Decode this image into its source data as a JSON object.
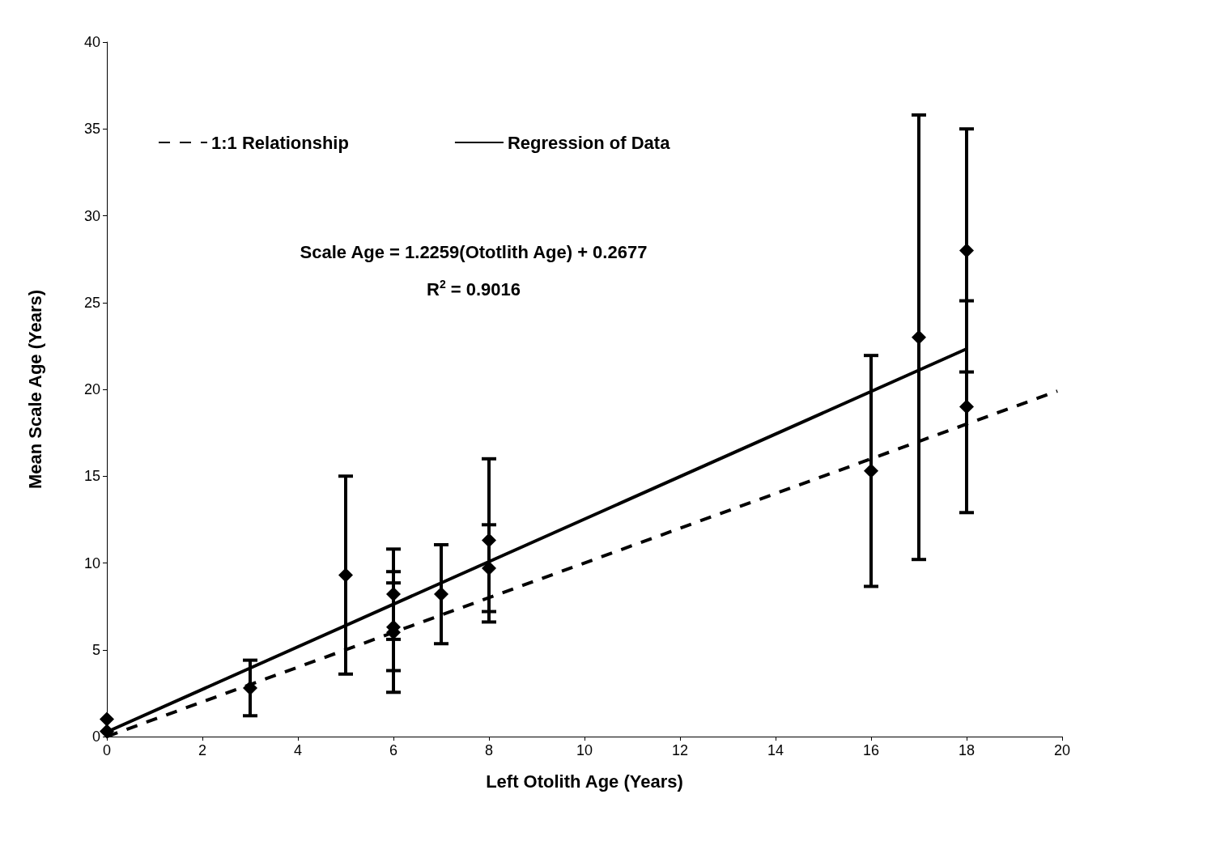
{
  "chart_data": {
    "type": "scatter",
    "xlabel": "Left Otolith Age (Years)",
    "ylabel": "Mean Scale Age (Years)",
    "xlim": [
      0,
      20
    ],
    "xticks": [
      0,
      2,
      4,
      6,
      8,
      10,
      12,
      14,
      16,
      18,
      20
    ],
    "ylim": [
      0,
      40
    ],
    "yticks": [
      0,
      5,
      10,
      15,
      20,
      25,
      30,
      35,
      40
    ],
    "grid": false,
    "legend": "top left",
    "marker": "diamond",
    "annotations": [
      "Scale Age = 1.2259(Ototlith Age) + 0.2677",
      "R$^{2}$ = 0.9016"
    ],
    "series": [
      {
        "color": "#000000",
        "x": [
          0,
          0,
          3,
          5,
          6,
          6,
          6,
          7,
          8,
          8,
          16,
          17,
          18,
          18
        ],
        "values": [
          1.0,
          0.3,
          2.8,
          9.3,
          8.2,
          6.3,
          6.0,
          8.2,
          11.3,
          9.7,
          15.3,
          23.0,
          28.0,
          19.0
        ],
        "errors": [
          null,
          null,
          [
            1.2,
            4.4
          ],
          [
            3.6,
            15.0
          ],
          [
            5.6,
            10.8
          ],
          [
            3.8,
            8.85
          ],
          [
            2.55,
            9.5
          ],
          [
            5.35,
            11.05
          ],
          [
            6.6,
            16.0
          ],
          [
            7.2,
            12.2
          ],
          [
            8.65,
            21.95
          ],
          [
            10.2,
            35.8
          ],
          [
            21.0,
            35.0
          ],
          [
            12.9,
            25.1
          ]
        ]
      },
      {
        "type": "line",
        "name": "1:1 Relationship",
        "color": "#000000",
        "line_style": "dashed",
        "marker": "none",
        "x": [
          0,
          19.9
        ],
        "values": [
          0,
          19.9
        ]
      },
      {
        "type": "line",
        "name": "Regression of Data",
        "color": "#000000",
        "line_style": "solid",
        "marker": "none",
        "x": [
          0,
          18
        ],
        "values": [
          0.27,
          22.33
        ]
      }
    ]
  }
}
